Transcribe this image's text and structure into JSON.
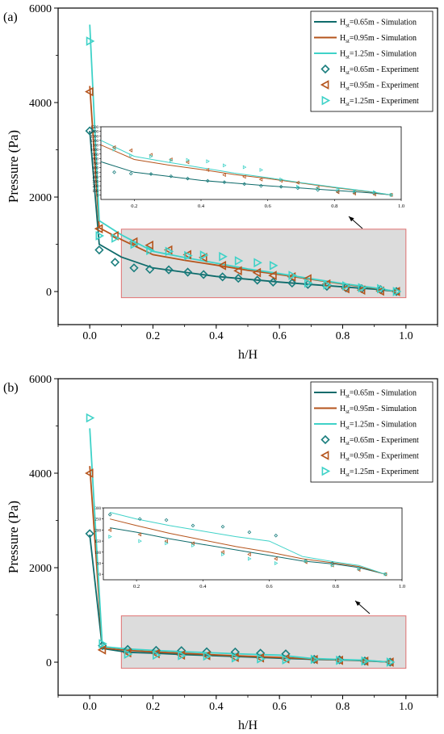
{
  "chart_data": [
    {
      "type": "line",
      "panel_label": "(a)",
      "xlabel": "h/H",
      "ylabel": "Pressure (Pa)",
      "xlim": [
        -0.1,
        1.1
      ],
      "ylim": [
        -700,
        6000
      ],
      "xticks": [
        "0.0",
        "0.2",
        "0.4",
        "0.6",
        "0.8",
        "1.0"
      ],
      "yticks": [
        "0",
        "2000",
        "4000",
        "6000"
      ],
      "xtick_values": [
        0,
        0.2,
        0.4,
        0.6,
        0.8,
        1.0
      ],
      "ytick_values": [
        0,
        2000,
        4000,
        6000
      ],
      "grid": false,
      "legend_position": "top-right",
      "legend": [
        {
          "label_main": "H",
          "label_sub": "st",
          "label_rest": "=0.65m - Simulation",
          "kind": "line",
          "color": "#0f6b6b"
        },
        {
          "label_main": "H",
          "label_sub": "st",
          "label_rest": "=0.95m - Simulation",
          "kind": "line",
          "color": "#b5541c"
        },
        {
          "label_main": "H",
          "label_sub": "st",
          "label_rest": "=1.25m - Simulation",
          "kind": "line",
          "color": "#3fd2c8"
        },
        {
          "label_main": "H",
          "label_sub": "st",
          "label_rest": "=0.65m - Experiment",
          "kind": "diamond",
          "color": "#1a7e7e"
        },
        {
          "label_main": "H",
          "label_sub": "st",
          "label_rest": "=0.95m - Experiment",
          "kind": "tri-left",
          "color": "#b5541c"
        },
        {
          "label_main": "H",
          "label_sub": "st",
          "label_rest": "=1.25m - Experiment",
          "kind": "tri-right",
          "color": "#3fd2c8"
        }
      ],
      "highlight_region": {
        "x": [
          0.1,
          1.0
        ],
        "y": [
          -130,
          1320
        ],
        "fill": "#dcdcdc",
        "stroke": "#e07070"
      },
      "series": [
        {
          "name": "Hst=0.65m - Simulation",
          "style": "line",
          "color": "#0f6b6b",
          "x": [
            0,
            0.03,
            0.1,
            0.2,
            0.3,
            0.4,
            0.5,
            0.6,
            0.7,
            0.8,
            0.9,
            0.97
          ],
          "y": [
            3400,
            1000,
            730,
            500,
            410,
            320,
            260,
            200,
            150,
            100,
            50,
            0
          ]
        },
        {
          "name": "Hst=0.95m - Simulation",
          "style": "line",
          "color": "#b5541c",
          "x": [
            0,
            0.03,
            0.1,
            0.2,
            0.3,
            0.4,
            0.5,
            0.6,
            0.7,
            0.8,
            0.9,
            0.97
          ],
          "y": [
            4350,
            1350,
            1100,
            780,
            660,
            560,
            450,
            360,
            260,
            160,
            70,
            0
          ]
        },
        {
          "name": "Hst=1.25m - Simulation",
          "style": "line",
          "color": "#3fd2c8",
          "x": [
            0,
            0.03,
            0.1,
            0.2,
            0.3,
            0.4,
            0.5,
            0.6,
            0.7,
            0.8,
            0.9,
            0.97
          ],
          "y": [
            5650,
            1500,
            1200,
            850,
            720,
            600,
            480,
            380,
            270,
            170,
            80,
            0
          ]
        },
        {
          "name": "Hst=0.65m - Experiment",
          "style": "diamond",
          "color": "#1a7e7e",
          "x": [
            0,
            0.03,
            0.08,
            0.14,
            0.19,
            0.25,
            0.31,
            0.36,
            0.42,
            0.47,
            0.53,
            0.58,
            0.64,
            0.69,
            0.75,
            0.81,
            0.86,
            0.92,
            0.97
          ],
          "y": [
            3400,
            880,
            620,
            500,
            470,
            460,
            410,
            360,
            310,
            280,
            240,
            200,
            180,
            150,
            110,
            80,
            60,
            40,
            0
          ]
        },
        {
          "name": "Hst=0.95m - Experiment",
          "style": "tri-left",
          "color": "#b5541c",
          "x": [
            0,
            0.03,
            0.08,
            0.14,
            0.19,
            0.25,
            0.31,
            0.36,
            0.42,
            0.47,
            0.53,
            0.58,
            0.64,
            0.69,
            0.75,
            0.81,
            0.86,
            0.92,
            0.97
          ],
          "y": [
            4230,
            1330,
            1180,
            1050,
            980,
            880,
            780,
            720,
            550,
            440,
            400,
            340,
            310,
            270,
            160,
            60,
            30,
            10,
            0
          ]
        },
        {
          "name": "Hst=1.25m - Experiment",
          "style": "tri-right",
          "color": "#3fd2c8",
          "x": [
            0,
            0.03,
            0.08,
            0.14,
            0.19,
            0.25,
            0.31,
            0.36,
            0.42,
            0.47,
            0.53,
            0.58,
            0.64,
            0.69,
            0.75,
            0.81,
            0.86,
            0.92,
            0.97
          ],
          "y": [
            5300,
            1180,
            1130,
            1000,
            870,
            850,
            760,
            770,
            740,
            650,
            610,
            550,
            340,
            180,
            140,
            120,
            80,
            60,
            0
          ]
        }
      ],
      "inset": {
        "xlim": [
          0.1,
          1.0
        ],
        "ylim": [
          -100,
          1500
        ],
        "xticks": [
          "0.2",
          "0.4",
          "0.6",
          "0.8",
          "1.0"
        ],
        "yticks": [
          "0",
          "100",
          "200",
          "300",
          "400",
          "500",
          "600",
          "700",
          "800",
          "900",
          "1000",
          "1100",
          "1200",
          "1300",
          "1400",
          "1500"
        ],
        "xtick_values": [
          0.2,
          0.4,
          0.6,
          0.8,
          1.0
        ],
        "ytick_values": [
          0,
          100,
          200,
          300,
          400,
          500,
          600,
          700,
          800,
          900,
          1000,
          1100,
          1200,
          1300,
          1400,
          1500
        ]
      }
    },
    {
      "type": "line",
      "panel_label": "(b)",
      "xlabel": "h/H",
      "ylabel": "Pressure (Pa)",
      "xlim": [
        -0.1,
        1.1
      ],
      "ylim": [
        -700,
        6000
      ],
      "xticks": [
        "0.0",
        "0.2",
        "0.4",
        "0.6",
        "0.8",
        "1.0"
      ],
      "yticks": [
        "0",
        "2000",
        "4000",
        "6000"
      ],
      "xtick_values": [
        0,
        0.2,
        0.4,
        0.6,
        0.8,
        1.0
      ],
      "ytick_values": [
        0,
        2000,
        4000,
        6000
      ],
      "grid": false,
      "legend_position": "top-right",
      "legend": [
        {
          "label_main": "H",
          "label_sub": "st",
          "label_rest": "=0.65m - Simulation",
          "kind": "line",
          "color": "#0f6b6b"
        },
        {
          "label_main": "H",
          "label_sub": "st",
          "label_rest": "=0.95m - Simulation",
          "kind": "line",
          "color": "#b5541c"
        },
        {
          "label_main": "H",
          "label_sub": "st",
          "label_rest": "=1.25m - Simulation",
          "kind": "line",
          "color": "#3fd2c8"
        },
        {
          "label_main": "H",
          "label_sub": "st",
          "label_rest": "=0.65m - Experiment",
          "kind": "diamond",
          "color": "#1a7e7e"
        },
        {
          "label_main": "H",
          "label_sub": "st",
          "label_rest": "=0.95m - Experiment",
          "kind": "tri-left",
          "color": "#b5541c"
        },
        {
          "label_main": "H",
          "label_sub": "st",
          "label_rest": "=1.25m - Experiment",
          "kind": "tri-right",
          "color": "#3fd2c8"
        }
      ],
      "highlight_region": {
        "x": [
          0.1,
          1.0
        ],
        "y": [
          -130,
          980
        ],
        "fill": "#dcdcdc",
        "stroke": "#e07070"
      },
      "series": [
        {
          "name": "Hst=0.65m - Simulation",
          "style": "line",
          "color": "#0f6b6b",
          "x": [
            0,
            0.04,
            0.12,
            0.2,
            0.3,
            0.4,
            0.5,
            0.6,
            0.7,
            0.8,
            0.87,
            0.95
          ],
          "y": [
            2700,
            290,
            210,
            190,
            160,
            135,
            110,
            85,
            60,
            45,
            30,
            0
          ]
        },
        {
          "name": "Hst=0.95m - Simulation",
          "style": "line",
          "color": "#b5541c",
          "x": [
            0,
            0.04,
            0.12,
            0.2,
            0.3,
            0.4,
            0.5,
            0.6,
            0.7,
            0.8,
            0.87,
            0.95
          ],
          "y": [
            4150,
            300,
            250,
            220,
            185,
            155,
            125,
            100,
            70,
            50,
            35,
            0
          ]
        },
        {
          "name": "Hst=1.25m - Simulation",
          "style": "line",
          "color": "#3fd2c8",
          "x": [
            0,
            0.04,
            0.12,
            0.2,
            0.3,
            0.4,
            0.5,
            0.6,
            0.7,
            0.8,
            0.87,
            0.95
          ],
          "y": [
            4950,
            330,
            280,
            250,
            220,
            195,
            170,
            150,
            80,
            55,
            40,
            0
          ]
        },
        {
          "name": "Hst=0.65m - Experiment",
          "style": "diamond",
          "color": "#1a7e7e",
          "x": [
            0,
            0.04,
            0.12,
            0.21,
            0.29,
            0.37,
            0.46,
            0.54,
            0.62,
            0.71,
            0.79,
            0.87,
            0.95
          ],
          "y": [
            2720,
            350,
            270,
            250,
            245,
            220,
            215,
            190,
            175,
            60,
            50,
            25,
            0
          ]
        },
        {
          "name": "Hst=0.95m - Experiment",
          "style": "tri-left",
          "color": "#b5541c",
          "x": [
            0,
            0.04,
            0.12,
            0.21,
            0.29,
            0.37,
            0.46,
            0.54,
            0.62,
            0.71,
            0.79,
            0.87,
            0.95
          ],
          "y": [
            4000,
            260,
            200,
            180,
            150,
            140,
            100,
            90,
            70,
            55,
            40,
            20,
            0
          ]
        },
        {
          "name": "Hst=1.25m - Experiment",
          "style": "tri-right",
          "color": "#3fd2c8",
          "x": [
            0,
            0.04,
            0.12,
            0.21,
            0.29,
            0.37,
            0.46,
            0.54,
            0.62,
            0.71,
            0.79,
            0.87,
            0.95
          ],
          "y": [
            5170,
            390,
            170,
            150,
            140,
            130,
            90,
            70,
            50,
            60,
            40,
            25,
            0
          ]
        }
      ],
      "inset": {
        "xlim": [
          0.1,
          1.0
        ],
        "ylim": [
          -25,
          300
        ],
        "xticks": [
          "0.2",
          "0.4",
          "0.6",
          "0.8",
          "1.0"
        ],
        "yticks": [
          "0",
          "50",
          "100",
          "150",
          "200",
          "250",
          "300"
        ],
        "xtick_values": [
          0.2,
          0.4,
          0.6,
          0.8,
          1.0
        ],
        "ytick_values": [
          0,
          50,
          100,
          150,
          200,
          250,
          300
        ]
      }
    }
  ]
}
